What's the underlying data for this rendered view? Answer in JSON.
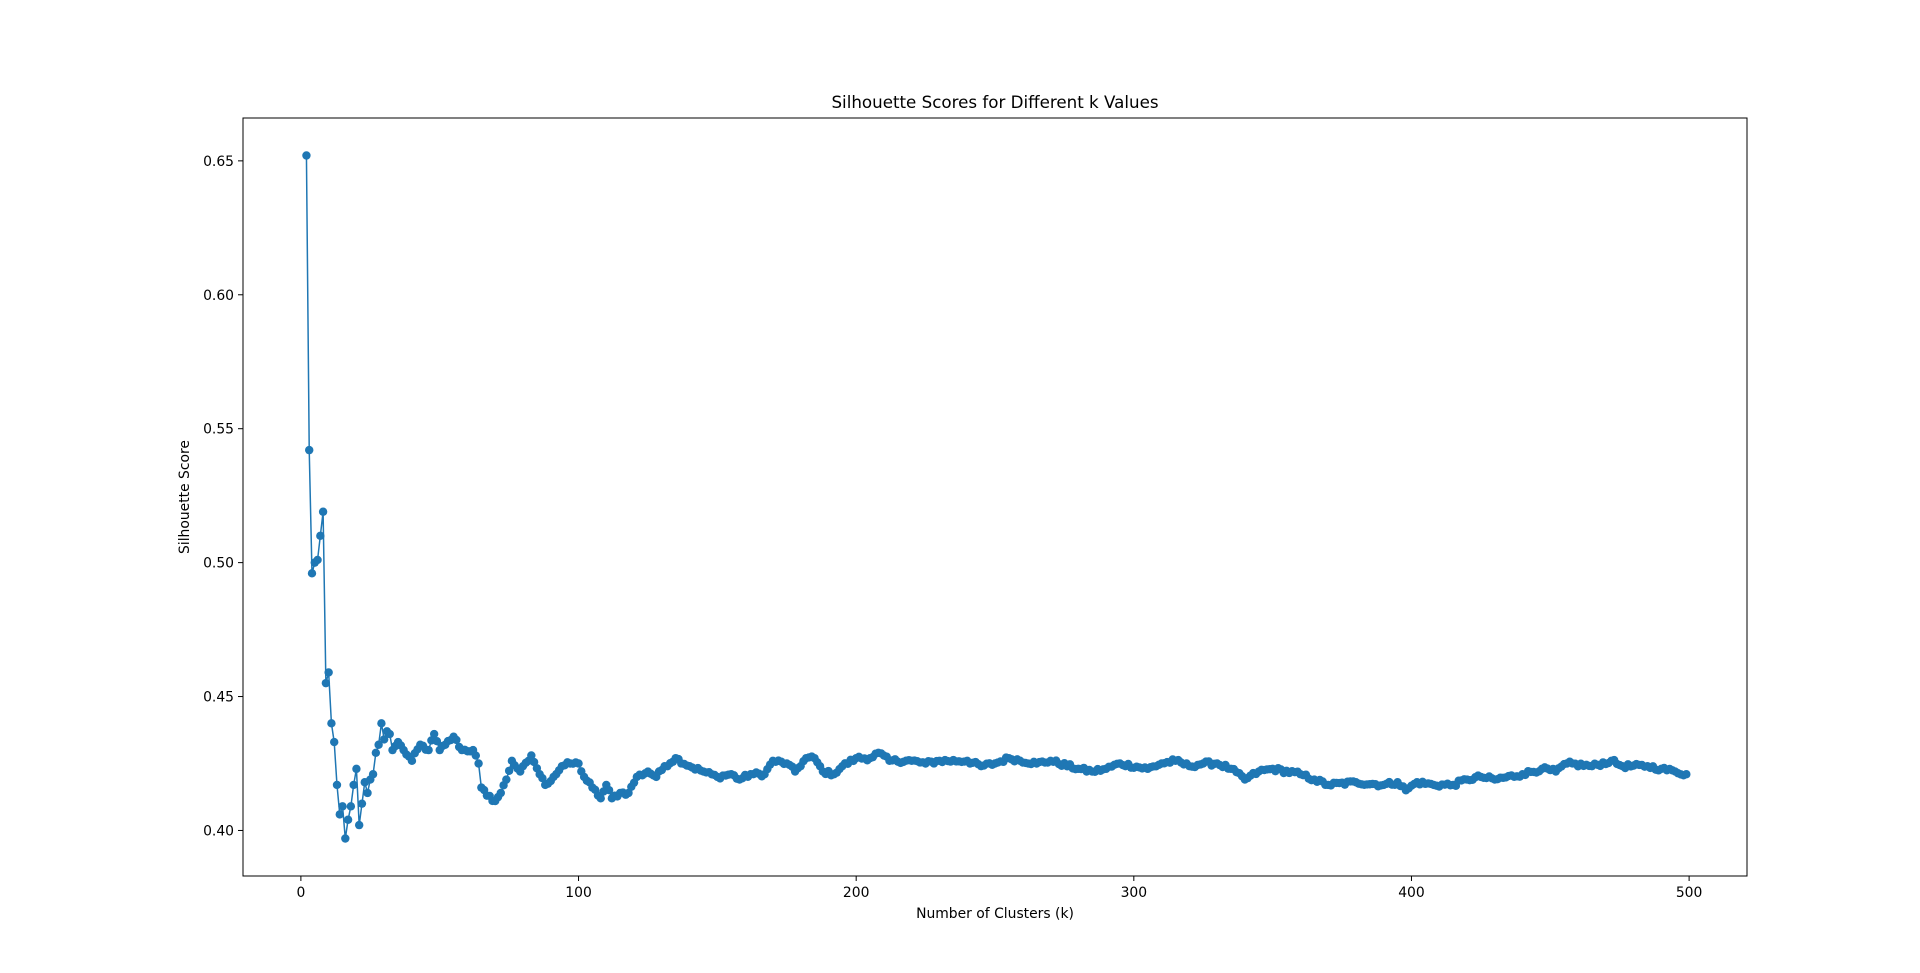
{
  "chart_data": {
    "type": "line",
    "title": "Silhouette Scores for Different k Values",
    "xlabel": "Number of Clusters (k)",
    "ylabel": "Silhouette Score",
    "xlim": [
      -20.85,
      520.85
    ],
    "ylim": [
      0.383,
      0.666
    ],
    "xticks": [
      0,
      100,
      200,
      300,
      400,
      500
    ],
    "yticks": [
      0.4,
      0.45,
      0.5,
      0.55,
      0.6,
      0.65
    ],
    "xtick_labels": [
      "0",
      "100",
      "200",
      "300",
      "400",
      "500"
    ],
    "ytick_labels": [
      "0.40",
      "0.45",
      "0.50",
      "0.55",
      "0.60",
      "0.65"
    ],
    "grid": false,
    "marker": "circle",
    "color": "#1f77b4",
    "x_start": 2,
    "x_end": 499,
    "anchors": [
      [
        2,
        0.652
      ],
      [
        3,
        0.542
      ],
      [
        4,
        0.496
      ],
      [
        5,
        0.5
      ],
      [
        6,
        0.501
      ],
      [
        7,
        0.51
      ],
      [
        8,
        0.519
      ],
      [
        9,
        0.455
      ],
      [
        10,
        0.459
      ],
      [
        11,
        0.44
      ],
      [
        12,
        0.433
      ],
      [
        13,
        0.417
      ],
      [
        14,
        0.406
      ],
      [
        15,
        0.409
      ],
      [
        16,
        0.397
      ],
      [
        17,
        0.404
      ],
      [
        18,
        0.409
      ],
      [
        19,
        0.417
      ],
      [
        20,
        0.423
      ],
      [
        21,
        0.402
      ],
      [
        22,
        0.41
      ],
      [
        23,
        0.418
      ],
      [
        24,
        0.414
      ],
      [
        25,
        0.419
      ],
      [
        26,
        0.421
      ],
      [
        27,
        0.429
      ],
      [
        28,
        0.432
      ],
      [
        29,
        0.44
      ],
      [
        30,
        0.434
      ],
      [
        31,
        0.437
      ],
      [
        32,
        0.436
      ],
      [
        33,
        0.43
      ],
      [
        35,
        0.433
      ],
      [
        37,
        0.43
      ],
      [
        40,
        0.426
      ],
      [
        43,
        0.432
      ],
      [
        46,
        0.43
      ],
      [
        48,
        0.436
      ],
      [
        50,
        0.43
      ],
      [
        52,
        0.432
      ],
      [
        55,
        0.435
      ],
      [
        58,
        0.43
      ],
      [
        62,
        0.43
      ],
      [
        64,
        0.425
      ],
      [
        65,
        0.416
      ],
      [
        67,
        0.413
      ],
      [
        70,
        0.411
      ],
      [
        72,
        0.414
      ],
      [
        74,
        0.419
      ],
      [
        76,
        0.426
      ],
      [
        79,
        0.422
      ],
      [
        82,
        0.426
      ],
      [
        83,
        0.428
      ],
      [
        86,
        0.421
      ],
      [
        88,
        0.417
      ],
      [
        91,
        0.42
      ],
      [
        94,
        0.424
      ],
      [
        97,
        0.425
      ],
      [
        100,
        0.425
      ],
      [
        102,
        0.42
      ],
      [
        105,
        0.416
      ],
      [
        108,
        0.412
      ],
      [
        110,
        0.417
      ],
      [
        112,
        0.412
      ],
      [
        115,
        0.414
      ],
      [
        118,
        0.414
      ],
      [
        121,
        0.42
      ],
      [
        125,
        0.422
      ],
      [
        128,
        0.42
      ],
      [
        131,
        0.424
      ],
      [
        135,
        0.427
      ],
      [
        140,
        0.424
      ],
      [
        145,
        0.422
      ],
      [
        150,
        0.42
      ],
      [
        155,
        0.421
      ],
      [
        158,
        0.419
      ],
      [
        162,
        0.421
      ],
      [
        167,
        0.421
      ],
      [
        170,
        0.426
      ],
      [
        175,
        0.425
      ],
      [
        178,
        0.422
      ],
      [
        182,
        0.427
      ],
      [
        185,
        0.427
      ],
      [
        188,
        0.422
      ],
      [
        192,
        0.421
      ],
      [
        195,
        0.424
      ],
      [
        200,
        0.427
      ],
      [
        205,
        0.427
      ],
      [
        208,
        0.429
      ],
      [
        212,
        0.426
      ],
      [
        220,
        0.426
      ],
      [
        225,
        0.425
      ],
      [
        230,
        0.426
      ],
      [
        240,
        0.426
      ],
      [
        245,
        0.424
      ],
      [
        250,
        0.425
      ],
      [
        255,
        0.427
      ],
      [
        265,
        0.425
      ],
      [
        270,
        0.426
      ],
      [
        280,
        0.423
      ],
      [
        285,
        0.422
      ],
      [
        290,
        0.423
      ],
      [
        295,
        0.425
      ],
      [
        305,
        0.423
      ],
      [
        310,
        0.425
      ],
      [
        315,
        0.426
      ],
      [
        320,
        0.424
      ],
      [
        325,
        0.425
      ],
      [
        330,
        0.425
      ],
      [
        335,
        0.423
      ],
      [
        340,
        0.419
      ],
      [
        345,
        0.422
      ],
      [
        350,
        0.423
      ],
      [
        360,
        0.421
      ],
      [
        365,
        0.419
      ],
      [
        370,
        0.417
      ],
      [
        380,
        0.418
      ],
      [
        390,
        0.417
      ],
      [
        395,
        0.418
      ],
      [
        398,
        0.415
      ],
      [
        402,
        0.418
      ],
      [
        408,
        0.417
      ],
      [
        415,
        0.417
      ],
      [
        420,
        0.419
      ],
      [
        425,
        0.42
      ],
      [
        430,
        0.419
      ],
      [
        440,
        0.421
      ],
      [
        447,
        0.423
      ],
      [
        452,
        0.422
      ],
      [
        456,
        0.425
      ],
      [
        465,
        0.424
      ],
      [
        472,
        0.426
      ],
      [
        476,
        0.424
      ],
      [
        485,
        0.424
      ],
      [
        490,
        0.423
      ],
      [
        495,
        0.422
      ],
      [
        499,
        0.421
      ]
    ]
  }
}
